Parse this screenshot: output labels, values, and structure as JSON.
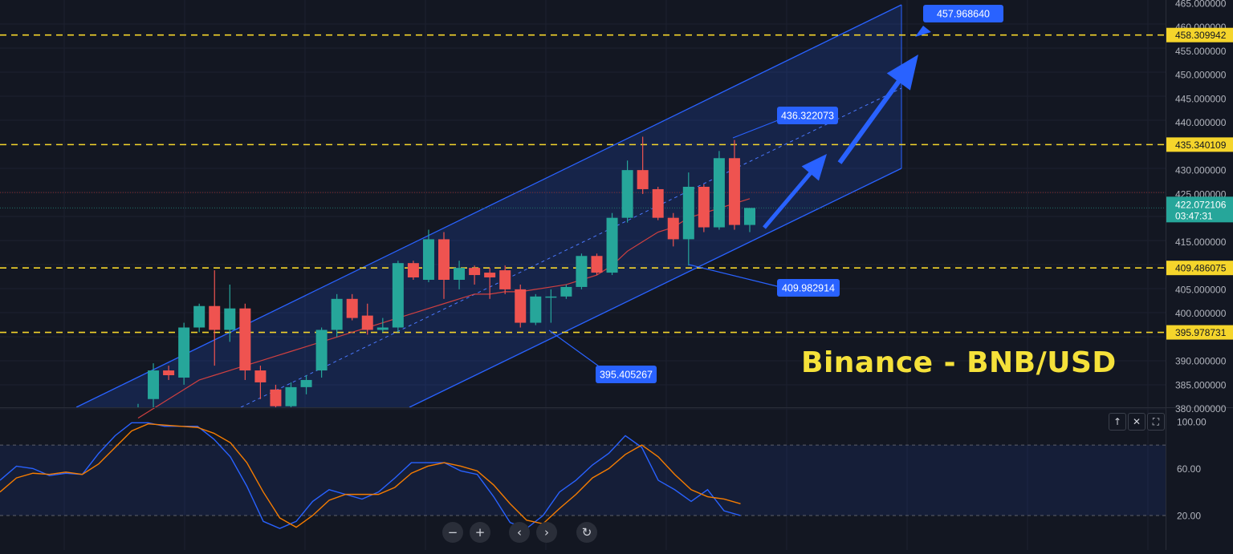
{
  "chart_data": {
    "type": "candlestick",
    "title": "Binance - BNB/USD",
    "price_axis": {
      "ticks": [
        "465.000000",
        "460.000000",
        "455.000000",
        "450.000000",
        "445.000000",
        "440.000000",
        "430.000000",
        "425.000000",
        "415.000000",
        "405.000000",
        "400.000000",
        "390.000000",
        "385.000000",
        "380.000000"
      ],
      "range": [
        378.5,
        465.5
      ]
    },
    "candles": [
      {
        "o": 376.0,
        "h": 381.0,
        "l": 373.0,
        "c": 380.0
      },
      {
        "o": 382.0,
        "h": 389.5,
        "l": 378.0,
        "c": 388.0
      },
      {
        "o": 388.0,
        "h": 389.0,
        "l": 386.0,
        "c": 387.0
      },
      {
        "o": 386.5,
        "h": 398.0,
        "l": 385.0,
        "c": 397.0
      },
      {
        "o": 397.0,
        "h": 402.0,
        "l": 396.0,
        "c": 401.5
      },
      {
        "o": 401.5,
        "h": 409.0,
        "l": 389.0,
        "c": 396.5
      },
      {
        "o": 396.5,
        "h": 406.0,
        "l": 394.0,
        "c": 401.0
      },
      {
        "o": 401.0,
        "h": 402.0,
        "l": 386.0,
        "c": 388.0
      },
      {
        "o": 388.0,
        "h": 389.0,
        "l": 382.0,
        "c": 385.5
      },
      {
        "o": 384.0,
        "h": 385.0,
        "l": 379.0,
        "c": 380.5
      },
      {
        "o": 380.5,
        "h": 385.5,
        "l": 379.5,
        "c": 384.5
      },
      {
        "o": 384.5,
        "h": 387.0,
        "l": 383.0,
        "c": 386.0
      },
      {
        "o": 388.0,
        "h": 397.0,
        "l": 386.5,
        "c": 396.5
      },
      {
        "o": 396.5,
        "h": 404.0,
        "l": 395.0,
        "c": 403.0
      },
      {
        "o": 403.0,
        "h": 404.0,
        "l": 398.5,
        "c": 399.0
      },
      {
        "o": 399.5,
        "h": 402.0,
        "l": 395.5,
        "c": 396.5
      },
      {
        "o": 396.5,
        "h": 399.0,
        "l": 396.0,
        "c": 397.0
      },
      {
        "o": 397.0,
        "h": 411.0,
        "l": 396.0,
        "c": 410.5
      },
      {
        "o": 410.5,
        "h": 411.0,
        "l": 407.0,
        "c": 407.5
      },
      {
        "o": 407.0,
        "h": 417.5,
        "l": 406.5,
        "c": 415.5
      },
      {
        "o": 415.5,
        "h": 417.0,
        "l": 403.0,
        "c": 407.0
      },
      {
        "o": 407.0,
        "h": 411.0,
        "l": 405.0,
        "c": 409.5
      },
      {
        "o": 409.5,
        "h": 410.0,
        "l": 406.0,
        "c": 408.0
      },
      {
        "o": 408.5,
        "h": 409.5,
        "l": 403.0,
        "c": 407.5
      },
      {
        "o": 409.0,
        "h": 410.0,
        "l": 404.0,
        "c": 405.0
      },
      {
        "o": 405.0,
        "h": 406.0,
        "l": 397.0,
        "c": 398.0
      },
      {
        "o": 398.0,
        "h": 404.0,
        "l": 397.5,
        "c": 403.5
      },
      {
        "o": 403.5,
        "h": 405.0,
        "l": 398.0,
        "c": 403.5
      },
      {
        "o": 403.5,
        "h": 406.0,
        "l": 403.0,
        "c": 405.5
      },
      {
        "o": 405.5,
        "h": 412.5,
        "l": 405.0,
        "c": 412.0
      },
      {
        "o": 412.0,
        "h": 412.5,
        "l": 408.0,
        "c": 408.5
      },
      {
        "o": 408.5,
        "h": 421.0,
        "l": 408.0,
        "c": 420.0
      },
      {
        "o": 420.0,
        "h": 432.0,
        "l": 419.0,
        "c": 430.0
      },
      {
        "o": 430.0,
        "h": 437.0,
        "l": 425.0,
        "c": 426.0
      },
      {
        "o": 426.0,
        "h": 426.5,
        "l": 419.5,
        "c": 420.0
      },
      {
        "o": 420.0,
        "h": 421.0,
        "l": 414.0,
        "c": 415.5
      },
      {
        "o": 415.5,
        "h": 429.5,
        "l": 410.0,
        "c": 426.5
      },
      {
        "o": 426.5,
        "h": 427.0,
        "l": 417.0,
        "c": 418.0
      },
      {
        "o": 418.0,
        "h": 434.0,
        "l": 417.5,
        "c": 432.5
      },
      {
        "o": 432.5,
        "h": 436.3,
        "l": 417.5,
        "c": 418.5
      },
      {
        "o": 418.5,
        "h": 422.0,
        "l": 417.0,
        "c": 422.07
      }
    ],
    "moving_average": [
      378,
      380,
      382,
      384,
      386,
      387,
      388,
      389,
      390,
      391,
      392,
      393,
      394,
      395,
      396,
      397,
      398,
      399,
      400,
      401,
      402,
      403,
      404,
      404,
      404.5,
      404.5,
      405,
      405.5,
      406,
      407,
      408,
      410,
      413,
      415,
      417,
      418,
      420,
      421,
      422,
      423,
      424
    ],
    "horizontal_levels": [
      {
        "label": "458.309942",
        "value": 458.31
      },
      {
        "label": "435.340109",
        "value": 435.34
      },
      {
        "label": "409.486075",
        "value": 409.49
      },
      {
        "label": "395.978731",
        "value": 395.98
      }
    ],
    "current_price": {
      "label": "422.072106",
      "countdown": "03:47:31",
      "value": 422.07
    },
    "red_line_value": 425.3,
    "annotations": [
      {
        "label": "457.968640",
        "value": 457.97
      },
      {
        "label": "436.322073",
        "value": 436.32
      },
      {
        "label": "409.982914",
        "value": 409.98
      },
      {
        "label": "395.405267",
        "value": 395.41
      }
    ],
    "oscillator": {
      "ticks": [
        "100.00",
        "60.00",
        "20.00"
      ],
      "upper_level": 80,
      "lower_level": 20,
      "k": [
        50,
        62,
        60,
        54,
        56,
        55,
        73,
        88,
        99,
        99,
        96,
        96,
        96,
        85,
        70,
        45,
        15,
        9,
        15,
        32,
        42,
        38,
        34,
        40,
        52,
        65,
        65,
        65,
        58,
        55,
        36,
        14,
        9,
        20,
        40,
        50,
        63,
        73,
        88,
        78,
        50,
        42,
        32,
        42,
        24,
        20
      ],
      "d": [
        40,
        52,
        56,
        55,
        57,
        55,
        64,
        78,
        92,
        98,
        97,
        96,
        95,
        90,
        82,
        65,
        40,
        18,
        10,
        20,
        33,
        38,
        38,
        38,
        44,
        56,
        62,
        65,
        62,
        58,
        46,
        30,
        16,
        13,
        26,
        38,
        52,
        60,
        72,
        80,
        70,
        55,
        42,
        36,
        34,
        30
      ]
    },
    "colors": {
      "up": "#26a69a",
      "down": "#ef5350",
      "channel": "#2962ff",
      "level": "#f5d52b",
      "k_line": "#2962ff",
      "d_line": "#f57c00"
    }
  },
  "ui": {
    "toolbar": {
      "zoom_out": "−",
      "zoom_in": "+",
      "scroll_left": "‹",
      "scroll_right": "›",
      "reset": "↻"
    },
    "pane_buttons": {
      "up": "↑",
      "close": "✕",
      "maximize": "⛶"
    }
  }
}
